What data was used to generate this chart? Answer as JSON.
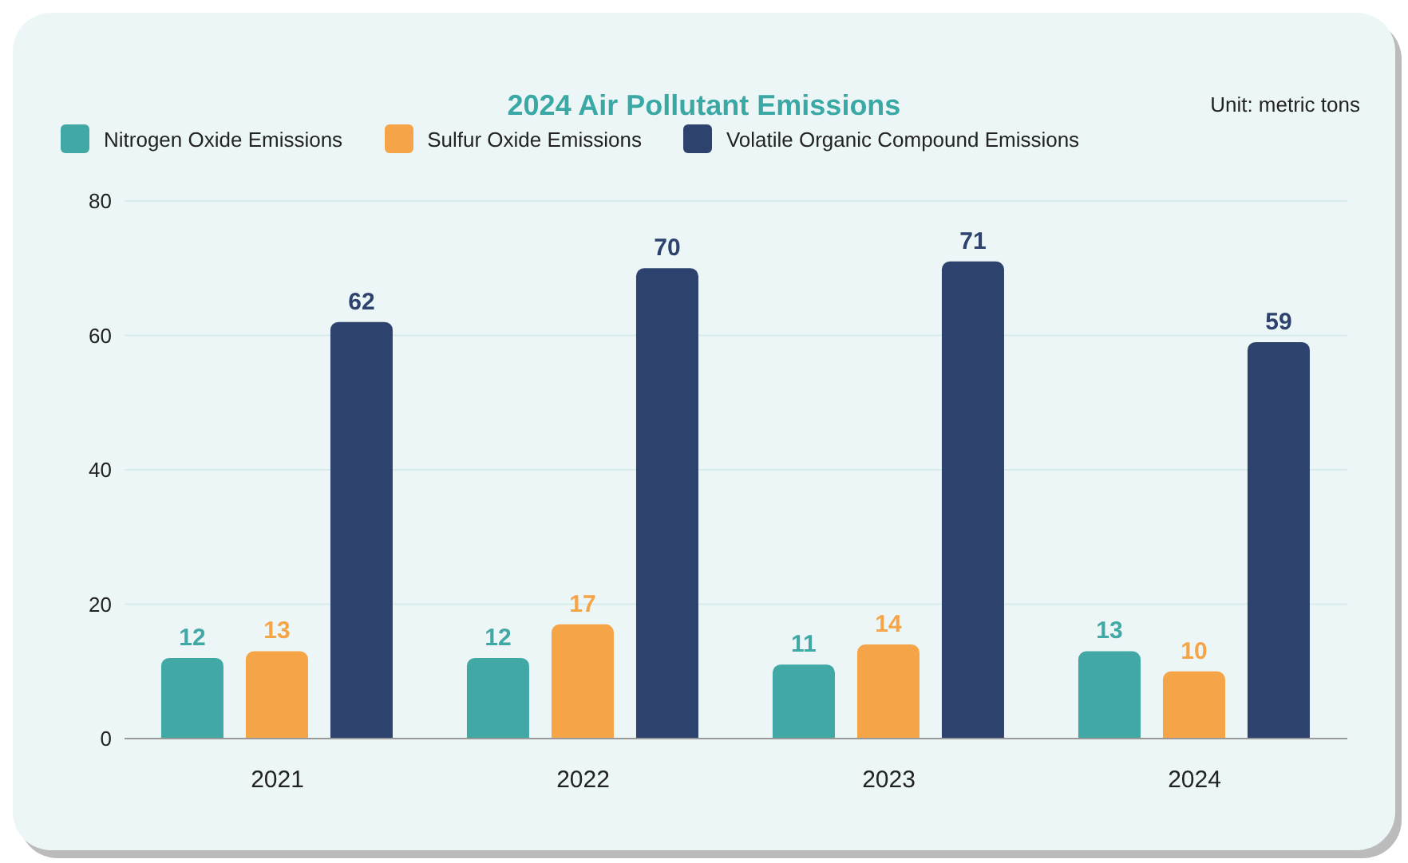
{
  "chart_data": {
    "type": "bar",
    "title": "2024 Air Pollutant Emissions",
    "annotations": [
      "Unit: metric tons"
    ],
    "categories": [
      "2021",
      "2022",
      "2023",
      "2024"
    ],
    "series": [
      {
        "name": "Nitrogen Oxide Emissions",
        "color": "#41a8a6",
        "values": [
          12,
          12,
          11,
          13
        ]
      },
      {
        "name": "Sulfur Oxide Emissions",
        "color": "#f5a447",
        "values": [
          13,
          17,
          14,
          10
        ]
      },
      {
        "name": "Volatile Organic Compound Emissions",
        "color": "#2d436e",
        "values": [
          62,
          70,
          71,
          59
        ]
      }
    ],
    "ylim": [
      0,
      80
    ],
    "yticks": [
      0,
      20,
      40,
      60,
      80
    ],
    "grid": "y",
    "legend": "top left",
    "data_labels": true
  }
}
